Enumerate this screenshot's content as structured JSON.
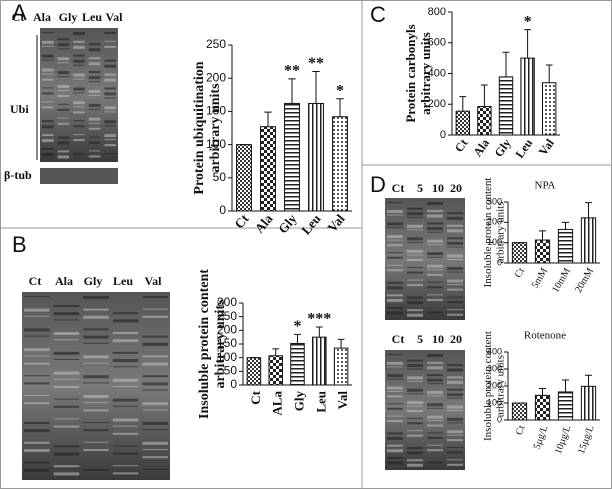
{
  "panel_labels": [
    "A",
    "B",
    "C",
    "D"
  ],
  "blots": [
    {
      "lanes": [
        "Ct",
        "Ala",
        "Gly",
        "Leu",
        "Val"
      ],
      "bands": [
        "Ubi",
        "β-tub"
      ]
    },
    {
      "lanes": [
        "Ct",
        "Ala",
        "Gly",
        "Leu",
        "Val"
      ]
    },
    {
      "lanes": [
        "Ct",
        "5",
        "10",
        "20"
      ]
    },
    {
      "lanes": [
        "Ct",
        "5",
        "10",
        "20"
      ]
    }
  ],
  "chart_data": [
    {
      "type": "bar",
      "ylabel": [
        "Protein ubiquitination",
        "arbitrary units"
      ],
      "categories": [
        "Ct",
        "Ala",
        "Gly",
        "Leu",
        "Val"
      ],
      "values": [
        100,
        127,
        162,
        162,
        142
      ],
      "errors": [
        0,
        22,
        37,
        48,
        27
      ],
      "annotations": [
        null,
        null,
        "**",
        "**",
        "*"
      ],
      "ylim": [
        0,
        250
      ],
      "yticks": [
        0,
        50,
        100,
        150,
        200,
        250
      ]
    },
    {
      "type": "bar",
      "ylabel": [
        "Insoluble protein content",
        "arbitrary units"
      ],
      "categories": [
        "Ct",
        "ALa",
        "Gly",
        "Leu",
        "Val"
      ],
      "values": [
        100,
        107,
        152,
        175,
        135
      ],
      "errors": [
        0,
        25,
        33,
        37,
        32
      ],
      "annotations": [
        null,
        null,
        "*",
        "***",
        null
      ],
      "ylim": [
        0,
        300
      ],
      "yticks": [
        0,
        50,
        100,
        150,
        200,
        250,
        300
      ]
    },
    {
      "type": "bar",
      "ylabel": [
        "Protein carbonyls",
        "arbitrary units"
      ],
      "categories": [
        "Ct",
        "Ala",
        "Gly",
        "Leu",
        "Val"
      ],
      "values": [
        155,
        185,
        378,
        500,
        340
      ],
      "errors": [
        95,
        140,
        160,
        185,
        115
      ],
      "annotations": [
        null,
        null,
        null,
        "*",
        null
      ],
      "ylim": [
        0,
        800
      ],
      "yticks": [
        0,
        200,
        400,
        600,
        800
      ]
    },
    {
      "type": "bar",
      "title": "NPA",
      "ylabel": [
        "Insoluble protein content",
        "arbitrary units"
      ],
      "categories": [
        "Ct",
        "5mM",
        "10mM",
        "20mM"
      ],
      "values": [
        100,
        113,
        165,
        222
      ],
      "errors": [
        0,
        45,
        35,
        75
      ],
      "ylim": [
        0,
        300
      ],
      "yticks": [
        0,
        100,
        200,
        300
      ]
    },
    {
      "type": "bar",
      "title": "Rotenone",
      "ylabel": [
        "Insoluble protein content",
        "arbitrary units"
      ],
      "categories": [
        "Ct",
        "5µg/L",
        "10µg/L",
        "15µg/L"
      ],
      "values": [
        100,
        145,
        165,
        198
      ],
      "errors": [
        0,
        40,
        70,
        65
      ],
      "ylim": [
        0,
        400
      ],
      "yticks": [
        0,
        100,
        200,
        300,
        400
      ]
    }
  ]
}
